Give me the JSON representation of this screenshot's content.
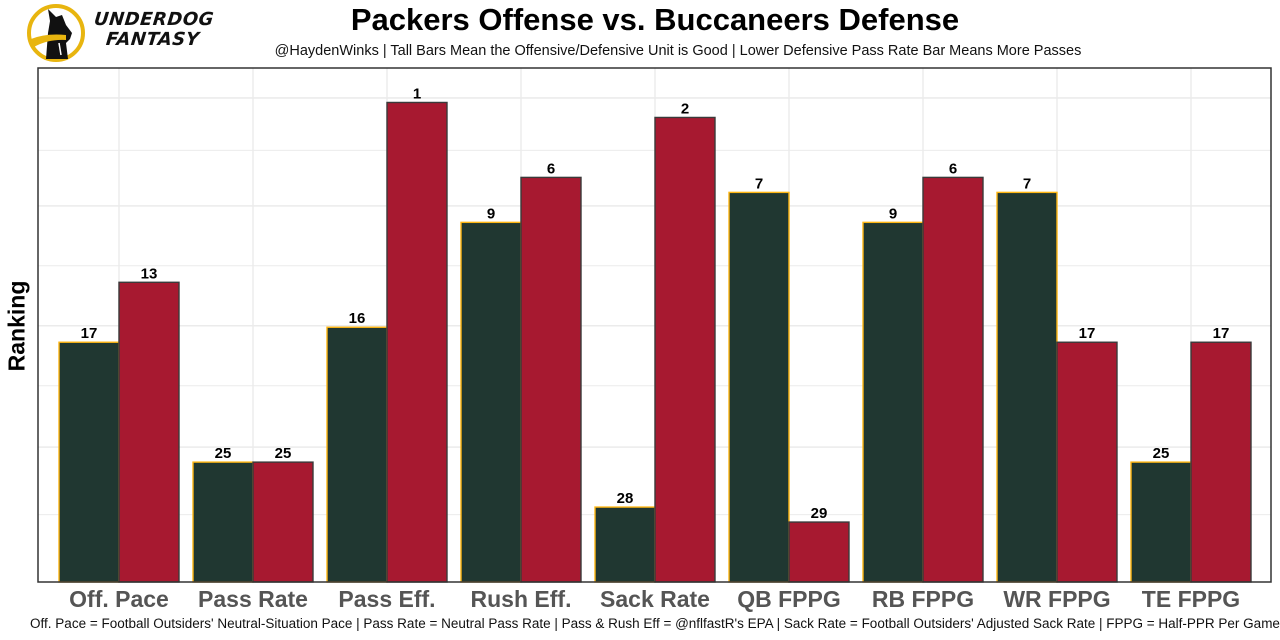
{
  "header": {
    "brand_line1": "UNDERDOG",
    "brand_line2": "FANTASY",
    "logo_icon": "underdog-dog-logo-icon"
  },
  "colors": {
    "offense_fill": "#203731",
    "offense_outline": "#FFB612",
    "defense_fill": "#A71930",
    "defense_outline": "#3a3a3a",
    "gridline": "#ebebeb",
    "tick_text": "#555555"
  },
  "chart_data": {
    "type": "bar",
    "title": "Packers Offense vs. Buccaneers Defense",
    "subtitle": "@HaydenWinks | Tall Bars Mean the Offensive/Defensive Unit is Good | Lower Defensive Pass Rate Bar Means More Passes",
    "xlabel": "",
    "ylabel": "Ranking",
    "caption": "Off. Pace = Football Outsiders' Neutral-Situation Pace | Pass Rate = Neutral Pass Rate | Pass & Rush Eff = @nflfastR's EPA | Sack Rate = Football Outsiders' Adjusted Sack Rate | FPPG = Half-PPR Per Game",
    "categories": [
      "Off. Pace",
      "Pass Rate",
      "Pass Eff.",
      "Rush Eff.",
      "Sack Rate",
      "QB FPPG",
      "RB FPPG",
      "WR FPPG",
      "TE FPPG"
    ],
    "series": [
      {
        "name": "Packers Offense",
        "ranks": [
          17,
          25,
          16,
          9,
          28,
          7,
          9,
          7,
          25
        ]
      },
      {
        "name": "Buccaneers Defense",
        "ranks": [
          13,
          25,
          1,
          6,
          2,
          29,
          6,
          17,
          17
        ]
      }
    ],
    "bar_height_rule": "height = 33 - rank (rank 1 tallest)",
    "ylim": [
      0,
      34.3
    ],
    "y_tick_labels_shown": false,
    "grid": true,
    "legend": "none"
  }
}
